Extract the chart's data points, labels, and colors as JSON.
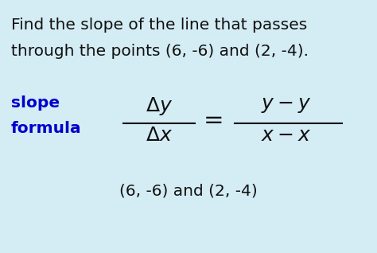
{
  "background_color": "#d4ecf4",
  "title_line1": "Find the slope of the line that passes",
  "title_line2": "through the points (6, -6) and (2, -4).",
  "slope_label_line1": "slope",
  "slope_label_line2": "formula",
  "slope_color": "#0000cc",
  "text_color": "#111111",
  "points_label": "(6, -6) and (2, -4)",
  "title_fontsize": 14.5,
  "slope_fontsize": 14.5,
  "formula_fontsize": 18,
  "points_fontsize": 14.5
}
